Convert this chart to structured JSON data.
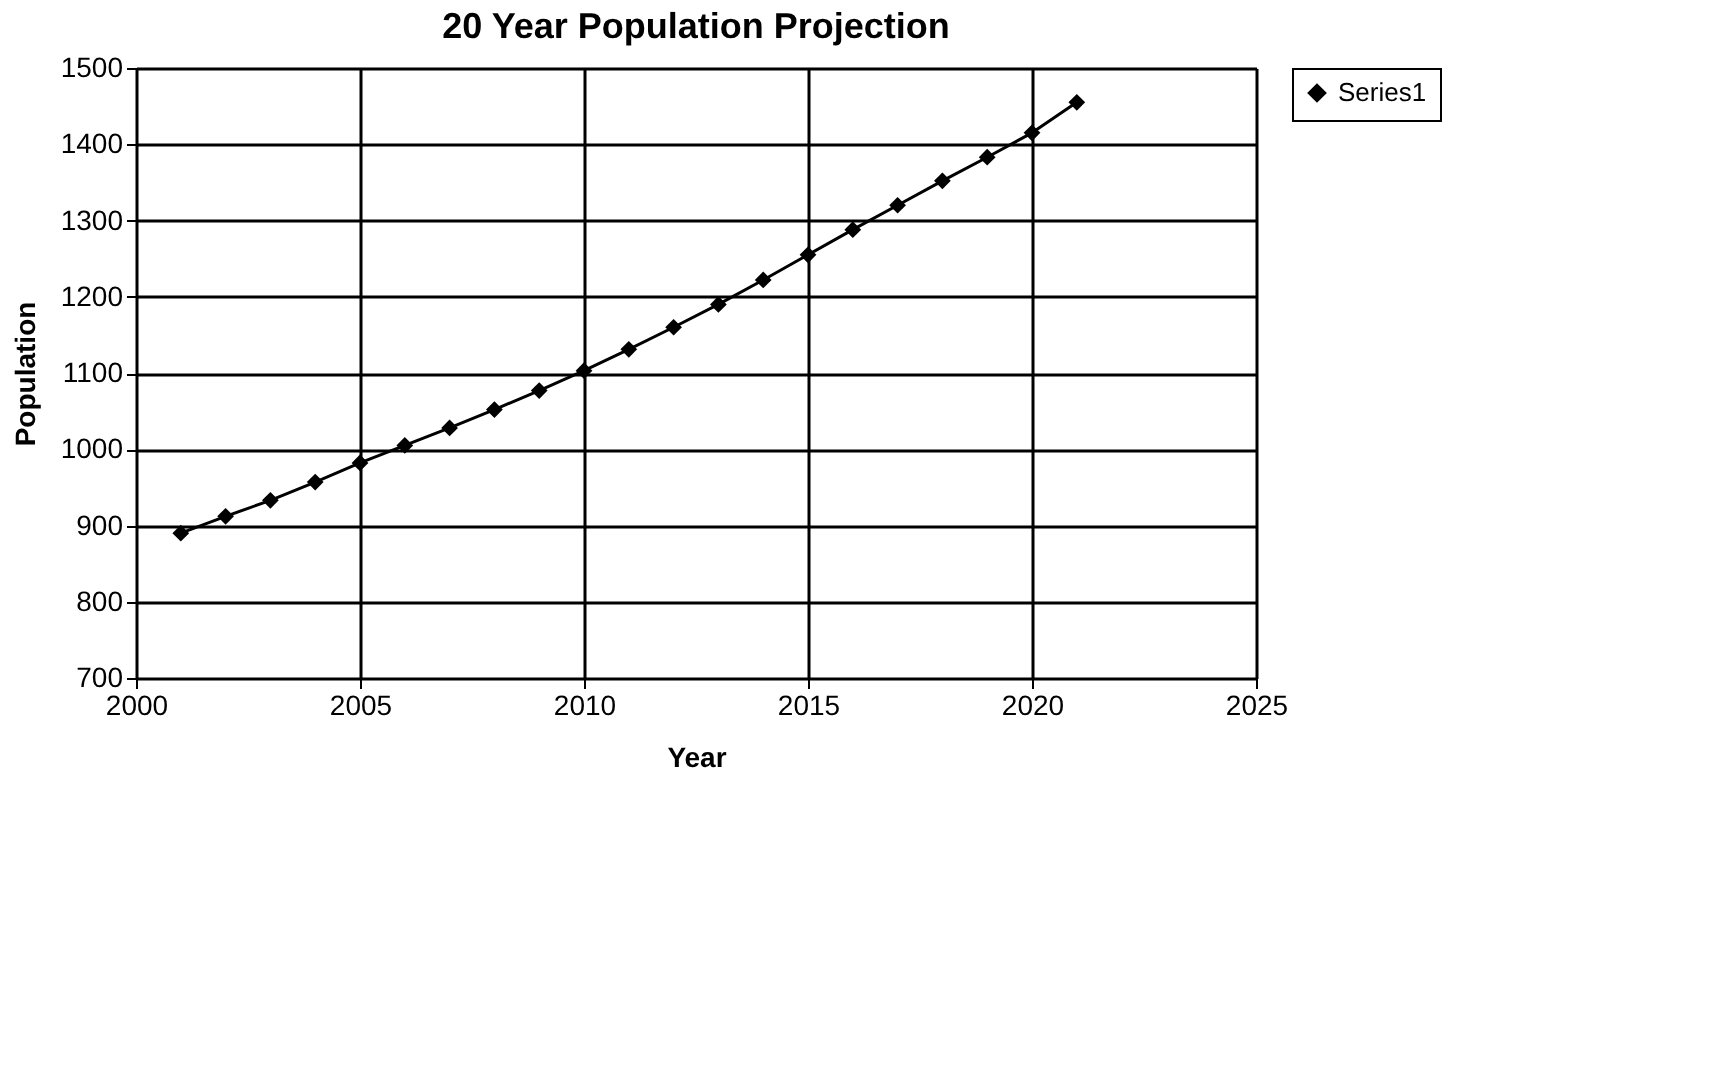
{
  "chart_data": {
    "type": "line",
    "title": "20 Year Population Projection",
    "xlabel": "Year",
    "ylabel": "Population",
    "x": [
      2001,
      2002,
      2003,
      2004,
      2005,
      2006,
      2007,
      2008,
      2009,
      2010,
      2011,
      2012,
      2013,
      2014,
      2015,
      2016,
      2017,
      2018,
      2019,
      2020,
      2021
    ],
    "series": [
      {
        "name": "Series1",
        "color": "#000000",
        "values": [
          890,
          912,
          933,
          957,
          982,
          1005,
          1028,
          1052,
          1077,
          1103,
          1131,
          1160,
          1190,
          1222,
          1255,
          1288,
          1320,
          1352,
          1383,
          1415,
          1455
        ]
      }
    ],
    "xlim": [
      2000,
      2025
    ],
    "xticks": [
      2000,
      2005,
      2010,
      2015,
      2020,
      2025
    ],
    "ylim": [
      700,
      1500
    ],
    "yticks": [
      700,
      800,
      900,
      1000,
      1100,
      1200,
      1300,
      1400,
      1500
    ],
    "grid": true,
    "legend": "right",
    "marker": "diamond",
    "line_style": "solid"
  }
}
